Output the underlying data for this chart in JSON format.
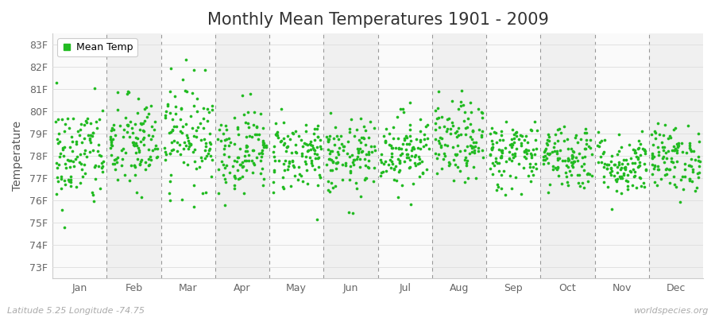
{
  "title": "Monthly Mean Temperatures 1901 - 2009",
  "ylabel": "Temperature",
  "xlabel_labels": [
    "Jan",
    "Feb",
    "Mar",
    "Apr",
    "May",
    "Jun",
    "Jul",
    "Aug",
    "Sep",
    "Oct",
    "Nov",
    "Dec"
  ],
  "ytick_labels": [
    "73F",
    "74F",
    "75F",
    "76F",
    "77F",
    "78F",
    "79F",
    "80F",
    "81F",
    "82F",
    "83F"
  ],
  "ytick_values": [
    73,
    74,
    75,
    76,
    77,
    78,
    79,
    80,
    81,
    82,
    83
  ],
  "ylim": [
    72.5,
    83.5
  ],
  "dot_color": "#22bb22",
  "background_color": "#ffffff",
  "band_color_odd": "#f0f0f0",
  "band_color_even": "#fafafa",
  "grid_color": "#dddddd",
  "dashed_line_color": "#999999",
  "legend_label": "Mean Temp",
  "footer_left": "Latitude 5.25 Longitude -74.75",
  "footer_right": "worldspecies.org",
  "title_fontsize": 15,
  "axis_label_fontsize": 10,
  "tick_fontsize": 9,
  "footer_fontsize": 8,
  "num_years": 109,
  "seed": 42,
  "monthly_means": [
    78.0,
    78.5,
    79.0,
    78.3,
    78.1,
    77.9,
    78.3,
    78.6,
    78.1,
    78.0,
    77.6,
    77.9
  ],
  "monthly_stds": [
    1.2,
    1.1,
    1.2,
    0.95,
    0.85,
    0.85,
    0.85,
    0.9,
    0.8,
    0.75,
    0.7,
    0.75
  ]
}
